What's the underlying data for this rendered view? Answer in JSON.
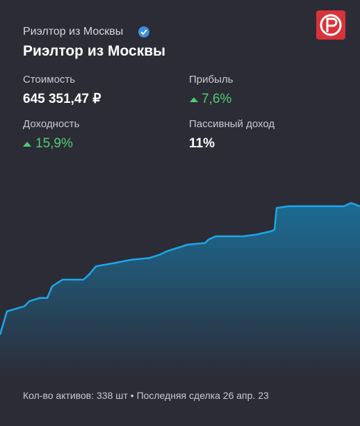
{
  "header": {
    "subtitle": "Риэлтор из Москвы",
    "title": "Риэлтор из Москвы"
  },
  "stats": [
    {
      "label": "Стоимость",
      "value": "645 351,47 ₽"
    },
    {
      "label": "Прибыль",
      "value": "7,6%"
    },
    {
      "label": "Доходность",
      "value": "15,9%"
    },
    {
      "label": "Пассивный доход",
      "value": "11%"
    }
  ],
  "footer": "Кол-во активов: 338 шт • Последняя сделка 26 апр. 23",
  "chart_data": {
    "type": "area",
    "color": "#1ba8ea",
    "x": [
      0,
      10,
      35,
      42,
      57,
      68,
      75,
      90,
      120,
      128,
      138,
      165,
      190,
      215,
      230,
      240,
      255,
      270,
      295,
      300,
      310,
      350,
      368,
      390,
      395,
      398,
      415,
      455,
      495,
      505,
      518
    ],
    "values": [
      16,
      30,
      33,
      36,
      38,
      38,
      45,
      49,
      49,
      52,
      57,
      59,
      61,
      62,
      64,
      66,
      68,
      70,
      71,
      73,
      75,
      75,
      76,
      78,
      79,
      92,
      93,
      93,
      93,
      95,
      93
    ],
    "xlim": [
      0,
      518
    ],
    "ylim": [
      0,
      100
    ]
  }
}
